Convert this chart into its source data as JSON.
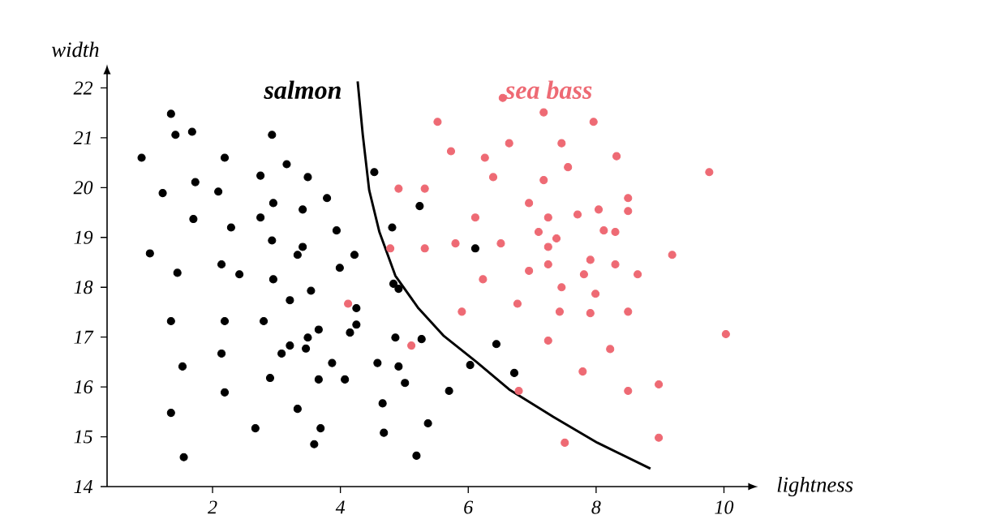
{
  "chart_data": {
    "type": "scatter",
    "xlabel": "lightness",
    "ylabel": "width",
    "xlim": [
      0.35,
      10.4
    ],
    "ylim": [
      14,
      22.3
    ],
    "xticks": [
      2,
      4,
      6,
      8,
      10
    ],
    "yticks": [
      14,
      15,
      16,
      17,
      18,
      19,
      20,
      21,
      22
    ],
    "series": [
      {
        "name": "salmon",
        "color": "#000000",
        "marker": "circle",
        "x": [
          1.35,
          1.42,
          1.68,
          0.89,
          2.19,
          2.93,
          3.16,
          2.75,
          3.49,
          1.22,
          1.73,
          2.09,
          2.95,
          3.41,
          3.79,
          1.7,
          2.29,
          2.75,
          2.93,
          3.41,
          3.33,
          3.94,
          4.22,
          3.99,
          1.02,
          1.45,
          2.14,
          2.42,
          4.53,
          4.81,
          5.24,
          6.11,
          2.95,
          3.54,
          3.21,
          4.83,
          4.25,
          4.91,
          1.35,
          2.19,
          2.8,
          3.66,
          4.25,
          4.15,
          3.49,
          3.21,
          3.46,
          3.08,
          4.86,
          1.53,
          2.14,
          3.87,
          4.58,
          4.91,
          2.9,
          3.66,
          4.07,
          5.01,
          2.19,
          4.66,
          1.35,
          3.33,
          2.67,
          3.69,
          4.68,
          3.59,
          1.55,
          5.19,
          5.27,
          5.7,
          5.37,
          6.03,
          6.44,
          6.72
        ],
        "values": [
          21.48,
          21.06,
          21.12,
          20.6,
          20.6,
          21.06,
          20.47,
          20.24,
          20.21,
          19.89,
          20.11,
          19.92,
          19.69,
          19.56,
          19.79,
          19.37,
          19.2,
          19.4,
          18.94,
          18.81,
          18.65,
          19.14,
          18.65,
          18.39,
          18.68,
          18.29,
          18.46,
          18.26,
          20.31,
          19.2,
          19.63,
          18.78,
          18.16,
          17.93,
          17.74,
          18.07,
          17.58,
          17.97,
          17.32,
          17.32,
          17.32,
          17.15,
          17.25,
          17.09,
          16.99,
          16.83,
          16.77,
          16.67,
          16.99,
          16.41,
          16.67,
          16.48,
          16.48,
          16.41,
          16.18,
          16.15,
          16.15,
          16.08,
          15.89,
          15.67,
          15.48,
          15.56,
          15.17,
          15.17,
          15.08,
          14.85,
          14.59,
          14.62,
          16.96,
          15.92,
          15.27,
          16.44,
          16.86,
          16.28
        ]
      },
      {
        "name": "sea bass",
        "color": "#ee6a74",
        "marker": "circle",
        "x": [
          6.54,
          7.18,
          7.96,
          5.52,
          6.64,
          7.46,
          5.73,
          6.26,
          8.32,
          7.56,
          6.39,
          7.18,
          9.77,
          4.91,
          5.32,
          8.5,
          6.95,
          8.04,
          8.5,
          7.71,
          6.11,
          7.25,
          8.12,
          8.3,
          7.1,
          7.38,
          5.8,
          6.51,
          7.25,
          4.78,
          5.32,
          9.19,
          7.91,
          7.25,
          8.3,
          6.95,
          8.65,
          7.81,
          4.12,
          6.23,
          7.46,
          7.99,
          5.9,
          6.77,
          7.43,
          7.91,
          8.5,
          10.03,
          7.25,
          8.22,
          5.11,
          7.79,
          6.79,
          8.5,
          8.98,
          7.51,
          8.98
        ],
        "values": [
          21.8,
          21.51,
          21.32,
          21.32,
          20.89,
          20.89,
          20.73,
          20.6,
          20.63,
          20.41,
          20.21,
          20.15,
          20.31,
          19.98,
          19.98,
          19.79,
          19.69,
          19.56,
          19.53,
          19.46,
          19.4,
          19.4,
          19.14,
          19.11,
          19.11,
          18.98,
          18.88,
          18.88,
          18.81,
          18.78,
          18.78,
          18.65,
          18.55,
          18.46,
          18.46,
          18.33,
          18.26,
          18.26,
          17.67,
          18.16,
          18.0,
          17.87,
          17.51,
          17.67,
          17.51,
          17.48,
          17.51,
          17.06,
          16.93,
          16.76,
          16.83,
          16.31,
          15.92,
          15.92,
          16.05,
          14.88,
          14.98
        ]
      },
      {
        "type": "line",
        "color": "#000000",
        "marker": "none",
        "x": [
          4.27,
          4.35,
          4.45,
          4.61,
          4.86,
          5.22,
          5.62,
          6.13,
          6.64,
          7.33,
          8.02,
          8.85
        ],
        "values": [
          22.13,
          21.06,
          19.95,
          19.11,
          18.23,
          17.58,
          17.02,
          16.5,
          15.95,
          15.4,
          14.88,
          14.36
        ]
      }
    ]
  }
}
